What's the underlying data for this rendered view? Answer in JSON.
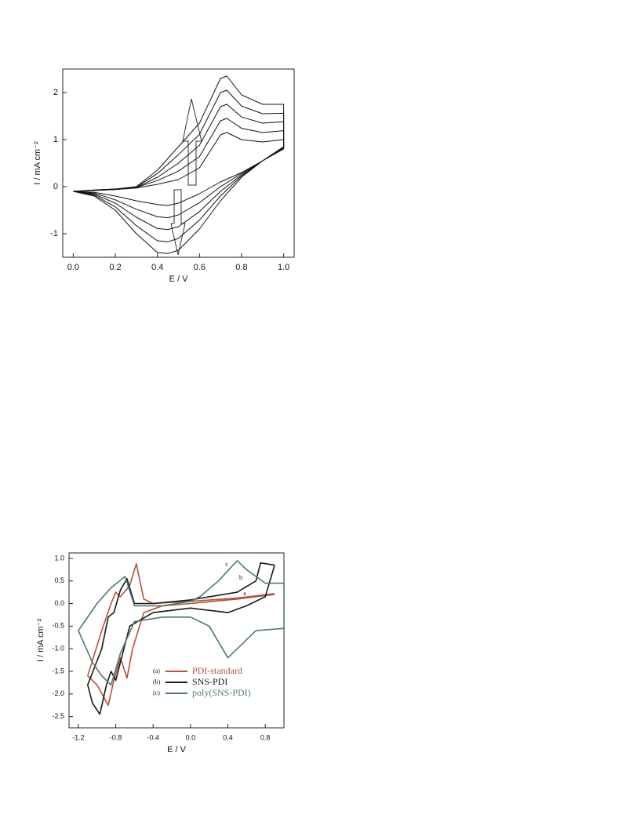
{
  "chart_data": [
    {
      "type": "line",
      "xlabel": "E / V",
      "ylabel": "I / mA cm⁻²",
      "xlim": [
        -0.05,
        1.05
      ],
      "ylim": [
        -1.5,
        2.5
      ],
      "xticks": [
        {
          "value": 0,
          "label": "0.0"
        },
        0.2,
        0.4,
        0.6,
        0.8,
        {
          "value": 1,
          "label": "1.0"
        }
      ],
      "yticks": [
        -1,
        0,
        1,
        2
      ],
      "series": [
        {
          "color": "#111111",
          "x": [
            0,
            0.1,
            0.2,
            0.3,
            0.4,
            0.5,
            0.6,
            0.7,
            0.73,
            0.8,
            0.9,
            1.0,
            1.0,
            0.9,
            0.8,
            0.7,
            0.6,
            0.5,
            0.45,
            0.4,
            0.3,
            0.2,
            0.1,
            0
          ],
          "values": [
            -0.1,
            -0.08,
            -0.06,
            -0.03,
            0.05,
            0.15,
            0.4,
            1.1,
            1.15,
            1.0,
            0.95,
            1.0,
            0.8,
            0.55,
            0.3,
            0.1,
            -0.15,
            -0.35,
            -0.4,
            -0.38,
            -0.3,
            -0.2,
            -0.12,
            -0.1
          ]
        },
        {
          "color": "#111111",
          "x": [
            0,
            0.1,
            0.2,
            0.3,
            0.4,
            0.5,
            0.6,
            0.7,
            0.73,
            0.8,
            0.9,
            1.0,
            1.0,
            0.9,
            0.8,
            0.7,
            0.6,
            0.5,
            0.45,
            0.4,
            0.3,
            0.2,
            0.1,
            0
          ],
          "values": [
            -0.1,
            -0.08,
            -0.06,
            -0.02,
            0.13,
            0.33,
            0.64,
            1.4,
            1.45,
            1.24,
            1.15,
            1.19,
            0.81,
            0.55,
            0.28,
            0.0,
            -0.34,
            -0.6,
            -0.66,
            -0.64,
            -0.48,
            -0.28,
            -0.14,
            -0.1
          ]
        },
        {
          "color": "#111111",
          "x": [
            0,
            0.1,
            0.2,
            0.3,
            0.4,
            0.5,
            0.6,
            0.7,
            0.73,
            0.8,
            0.9,
            1.0,
            1.0,
            0.9,
            0.8,
            0.7,
            0.6,
            0.5,
            0.45,
            0.4,
            0.3,
            0.2,
            0.1,
            0
          ],
          "values": [
            -0.1,
            -0.08,
            -0.06,
            -0.02,
            0.2,
            0.5,
            0.88,
            1.7,
            1.75,
            1.48,
            1.35,
            1.38,
            0.83,
            0.55,
            0.25,
            -0.1,
            -0.53,
            -0.85,
            -0.91,
            -0.89,
            -0.65,
            -0.35,
            -0.16,
            -0.1
          ]
        },
        {
          "color": "#111111",
          "x": [
            0,
            0.1,
            0.2,
            0.3,
            0.4,
            0.5,
            0.6,
            0.7,
            0.73,
            0.8,
            0.9,
            1.0,
            1.0,
            0.9,
            0.8,
            0.7,
            0.6,
            0.5,
            0.45,
            0.4,
            0.3,
            0.2,
            0.1,
            0
          ],
          "values": [
            -0.1,
            -0.07,
            -0.05,
            -0.01,
            0.28,
            0.68,
            1.11,
            2.0,
            2.05,
            1.71,
            1.55,
            1.56,
            0.84,
            0.55,
            0.23,
            -0.2,
            -0.71,
            -1.1,
            -1.17,
            -1.15,
            -0.83,
            -0.43,
            -0.18,
            -0.1
          ]
        },
        {
          "color": "#111111",
          "x": [
            0,
            0.1,
            0.2,
            0.3,
            0.4,
            0.5,
            0.6,
            0.7,
            0.73,
            0.8,
            0.9,
            1.0,
            1.0,
            0.9,
            0.8,
            0.7,
            0.6,
            0.5,
            0.45,
            0.4,
            0.3,
            0.2,
            0.1,
            0
          ],
          "values": [
            -0.1,
            -0.07,
            -0.05,
            0.0,
            0.35,
            0.85,
            1.35,
            2.3,
            2.35,
            1.95,
            1.75,
            1.75,
            0.85,
            0.55,
            0.2,
            -0.3,
            -0.9,
            -1.35,
            -1.42,
            -1.4,
            -1.0,
            -0.5,
            -0.2,
            -0.1
          ]
        }
      ]
    },
    {
      "type": "line",
      "xlabel": "E / V",
      "ylabel": "I / mA cm⁻²",
      "xlim": [
        -1.3,
        1.0
      ],
      "ylim": [
        -2.75,
        1.12
      ],
      "xticks": [
        -1.2,
        -0.8,
        -0.4,
        {
          "value": 0,
          "label": "0.0"
        },
        0.4,
        0.8
      ],
      "yticks": [
        {
          "value": 1,
          "label": "1.0"
        },
        0.5,
        {
          "value": 0,
          "label": "0.0"
        },
        -0.5,
        {
          "value": -1,
          "label": "-1.0"
        },
        -1.5,
        {
          "value": -2,
          "label": "-2.0"
        },
        -2.5
      ],
      "legend": "lower-center",
      "series": [
        {
          "name": "PDI-standard",
          "tag": "(a)",
          "curve_label": "a",
          "color": "#b5513a",
          "x": [
            0.9,
            0.5,
            0.0,
            -0.4,
            -0.5,
            -0.58,
            -0.65,
            -0.75,
            -0.8,
            -0.85,
            -0.95,
            -1.1,
            -1.0,
            -0.88,
            -0.82,
            -0.75,
            -0.68,
            -0.62,
            -0.5,
            -0.3,
            0.0,
            0.5,
            0.9
          ],
          "values": [
            0.22,
            0.12,
            0.05,
            0.0,
            0.1,
            0.88,
            0.4,
            0.15,
            0.25,
            0.0,
            -0.6,
            -1.6,
            -1.8,
            -2.25,
            -1.7,
            -1.2,
            -1.65,
            -1.0,
            -0.2,
            -0.05,
            0.0,
            0.1,
            0.2
          ]
        },
        {
          "name": "SNS-PDI",
          "tag": "(b)",
          "curve_label": "b",
          "color": "#1a1a1a",
          "x": [
            0.9,
            0.75,
            0.7,
            0.5,
            0.2,
            0.0,
            -0.4,
            -0.6,
            -0.68,
            -0.75,
            -0.82,
            -0.88,
            -0.95,
            -1.1,
            -1.05,
            -0.97,
            -0.9,
            -0.85,
            -0.8,
            -0.75,
            -0.65,
            -0.4,
            0.0,
            0.4,
            0.6,
            0.8,
            0.9
          ],
          "values": [
            0.85,
            0.9,
            0.5,
            0.25,
            0.15,
            0.08,
            0.0,
            0.0,
            0.55,
            0.3,
            -0.2,
            -0.3,
            -1.0,
            -1.8,
            -2.2,
            -2.45,
            -1.8,
            -1.5,
            -1.7,
            -1.3,
            -0.5,
            -0.2,
            -0.1,
            -0.2,
            -0.05,
            0.15,
            0.85
          ]
        },
        {
          "name": "poly(SNS-PDI)",
          "tag": "(c)",
          "curve_label": "c",
          "color": "#4a7a72",
          "x": [
            1.0,
            0.8,
            0.6,
            0.5,
            0.3,
            0.1,
            0.0,
            -0.3,
            -0.6,
            -0.7,
            -0.85,
            -1.0,
            -1.2,
            -1.05,
            -0.95,
            -0.85,
            -0.75,
            -0.6,
            -0.3,
            0.0,
            0.2,
            0.4,
            0.7,
            1.0,
            1.0
          ],
          "values": [
            0.45,
            0.45,
            0.75,
            0.95,
            0.5,
            0.15,
            0.05,
            -0.05,
            -0.05,
            0.6,
            0.35,
            0.0,
            -0.6,
            -1.3,
            -1.6,
            -1.8,
            -1.1,
            -0.4,
            -0.3,
            -0.3,
            -0.5,
            -1.2,
            -0.6,
            -0.55,
            0.45
          ]
        }
      ]
    }
  ]
}
